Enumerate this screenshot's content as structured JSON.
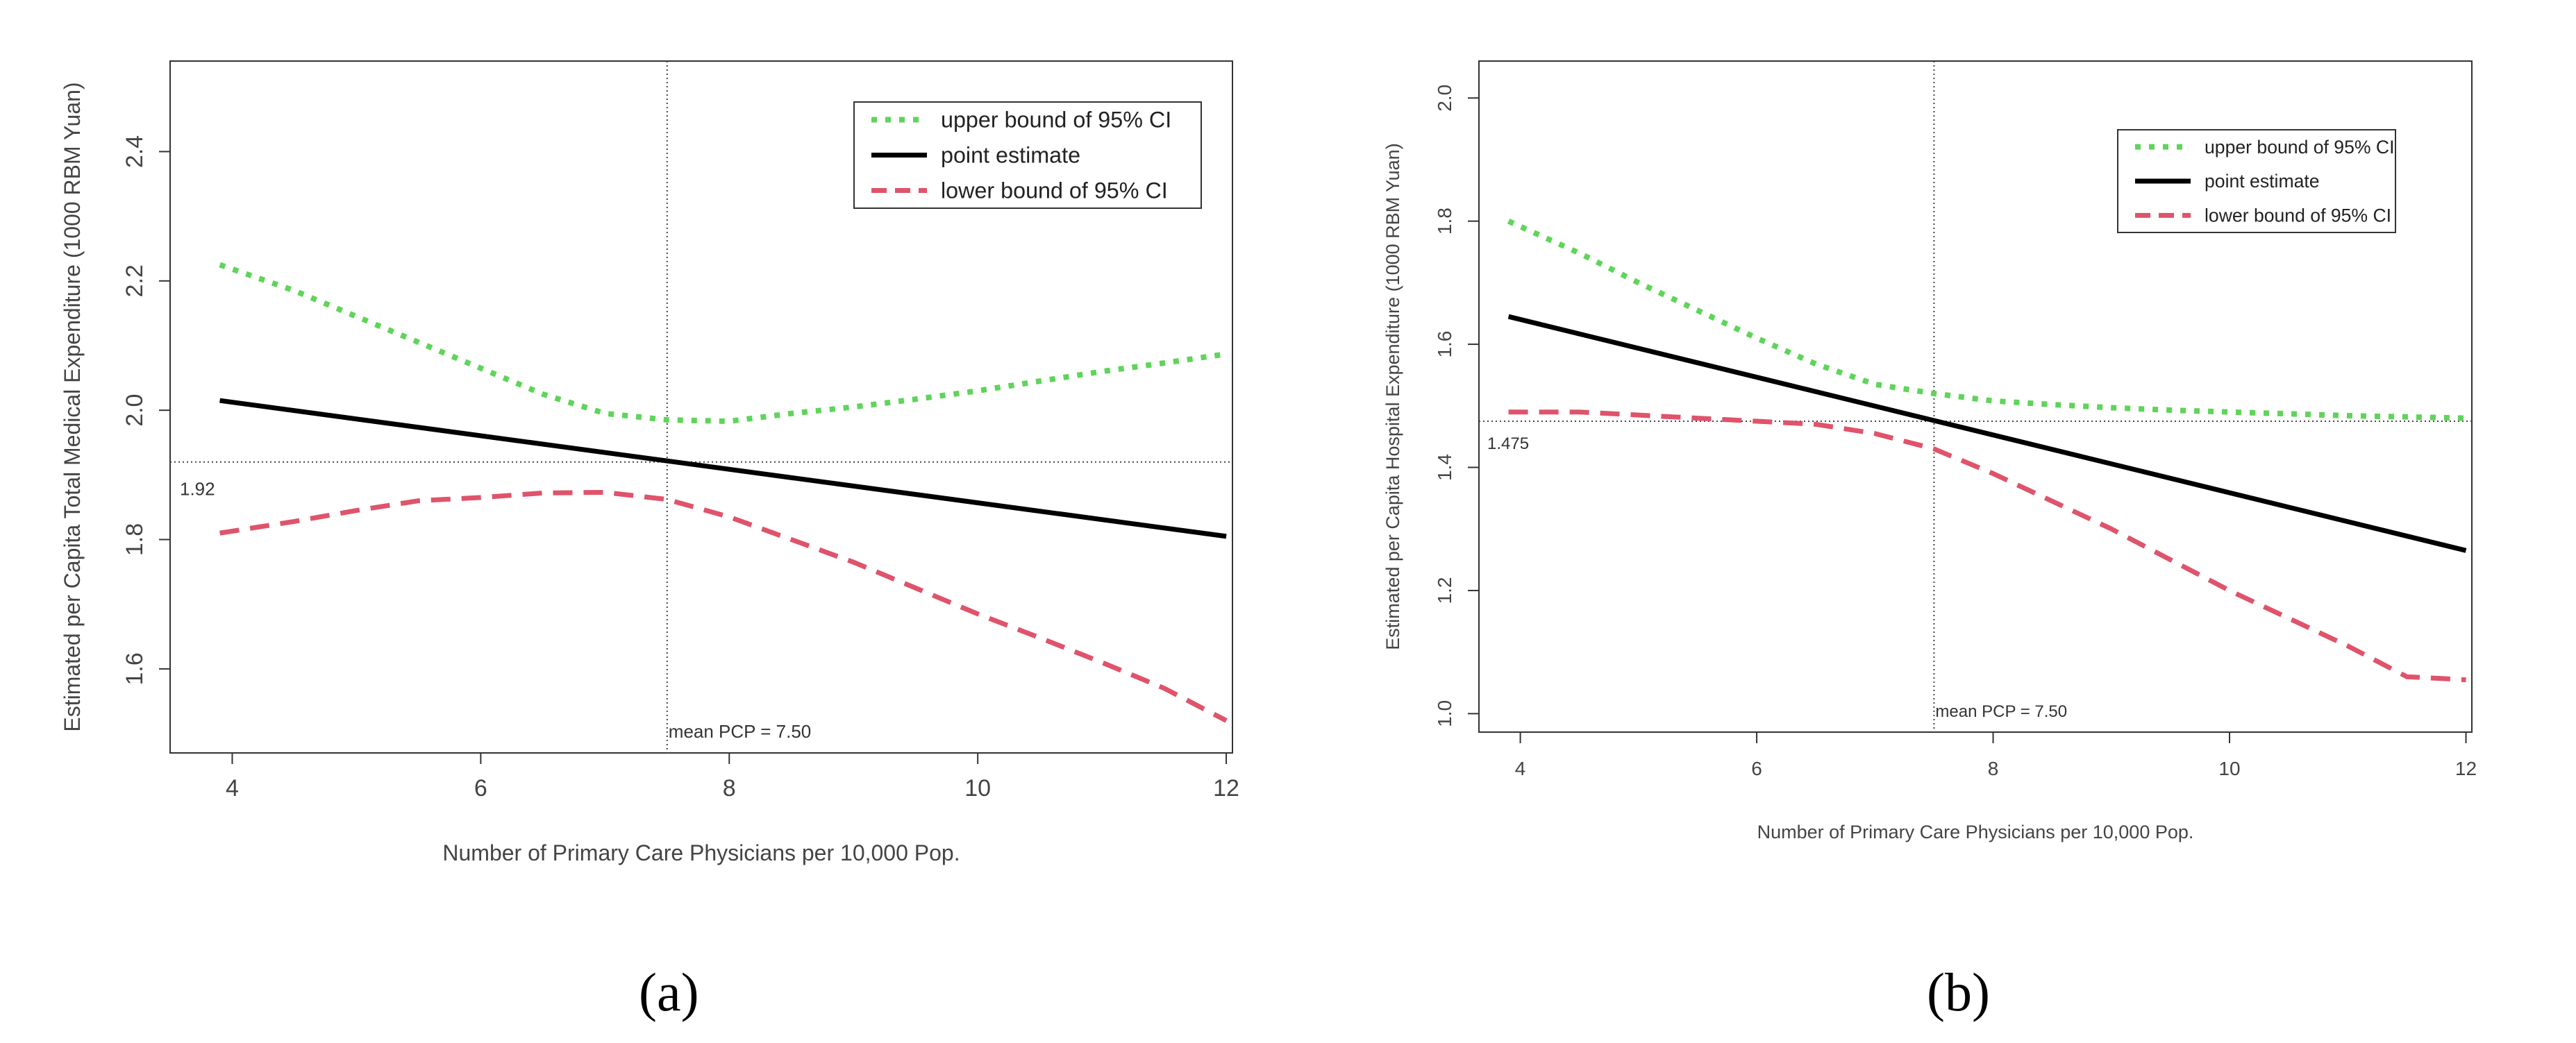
{
  "chart_data": [
    {
      "type": "line",
      "panel_label": "(a)",
      "xlabel": "Number of Primary Care Physicians per 10,000 Pop.",
      "ylabel": "Estimated per Capita Total Medical Expenditure (1000 RBM Yuan)",
      "xlim": [
        3.5,
        12.05
      ],
      "ylim": [
        1.47,
        2.54
      ],
      "xticks": [
        4,
        6,
        8,
        10,
        12
      ],
      "yticks": [
        1.6,
        1.8,
        2.0,
        2.2,
        2.4
      ],
      "x_tick_labels": [
        "4",
        "6",
        "8",
        "10",
        "12"
      ],
      "y_tick_labels": [
        "1.6",
        "1.8",
        "2.0",
        "2.2",
        "2.4"
      ],
      "reference_lines": {
        "vertical": {
          "x": 7.5,
          "label": "mean PCP = 7.50"
        },
        "horizontal": {
          "y": 1.92,
          "label": "1.92"
        }
      },
      "legend_position": "top-right",
      "series": [
        {
          "name": "upper bound of 95% CI",
          "color": "#5fd45a",
          "style": "dotted",
          "x": [
            3.9,
            4.5,
            5,
            5.5,
            6,
            6.5,
            7,
            7.5,
            8,
            8.5,
            9,
            9.5,
            10,
            10.5,
            11,
            11.5,
            12
          ],
          "y": [
            2.225,
            2.185,
            2.145,
            2.105,
            2.065,
            2.025,
            1.995,
            1.985,
            1.983,
            1.995,
            2.005,
            2.017,
            2.03,
            2.045,
            2.06,
            2.073,
            2.087
          ]
        },
        {
          "name": "point estimate",
          "color": "#000000",
          "style": "solid",
          "x": [
            3.9,
            12
          ],
          "y": [
            2.015,
            1.805
          ]
        },
        {
          "name": "lower bound of 95% CI",
          "color": "#df536b",
          "style": "dashed",
          "x": [
            3.9,
            4.5,
            5,
            5.5,
            6,
            6.5,
            7,
            7.5,
            8,
            8.5,
            9,
            9.5,
            10,
            10.5,
            11,
            11.5,
            12
          ],
          "y": [
            1.81,
            1.828,
            1.845,
            1.86,
            1.865,
            1.872,
            1.873,
            1.862,
            1.835,
            1.8,
            1.765,
            1.725,
            1.685,
            1.648,
            1.61,
            1.57,
            1.52
          ]
        }
      ]
    },
    {
      "type": "line",
      "panel_label": "(b)",
      "xlabel": "Number of Primary Care Physicians per 10,000 Pop.",
      "ylabel": "Estimated per Capita Hospital Expenditure (1000 RBM Yuan)",
      "xlim": [
        3.65,
        12.05
      ],
      "ylim": [
        0.97,
        2.06
      ],
      "xticks": [
        4,
        6,
        8,
        10,
        12
      ],
      "yticks": [
        1.0,
        1.2,
        1.4,
        1.6,
        1.8,
        2.0
      ],
      "x_tick_labels": [
        "4",
        "6",
        "8",
        "10",
        "12"
      ],
      "y_tick_labels": [
        "1.0",
        "1.2",
        "1.4",
        "1.6",
        "1.8",
        "2.0"
      ],
      "reference_lines": {
        "vertical": {
          "x": 7.5,
          "label": "mean PCP = 7.50"
        },
        "horizontal": {
          "y": 1.475,
          "label": "1.475"
        }
      },
      "legend_position": "top-right",
      "series": [
        {
          "name": "upper bound of 95% CI",
          "color": "#5fd45a",
          "style": "dotted",
          "x": [
            3.9,
            4.5,
            5,
            5.5,
            6,
            6.5,
            7,
            7.5,
            8,
            8.5,
            9,
            9.5,
            10,
            10.5,
            11,
            11.5,
            12
          ],
          "y": [
            1.8,
            1.748,
            1.7,
            1.655,
            1.61,
            1.568,
            1.535,
            1.52,
            1.508,
            1.502,
            1.497,
            1.493,
            1.49,
            1.487,
            1.484,
            1.482,
            1.48
          ]
        },
        {
          "name": "point estimate",
          "color": "#000000",
          "style": "solid",
          "x": [
            3.9,
            12
          ],
          "y": [
            1.645,
            1.265
          ]
        },
        {
          "name": "lower bound of 95% CI",
          "color": "#df536b",
          "style": "dashed",
          "x": [
            3.9,
            4.5,
            5,
            5.5,
            6,
            6.5,
            7,
            7.5,
            8,
            8.5,
            9,
            9.5,
            10,
            10.5,
            11,
            11.5,
            12
          ],
          "y": [
            1.49,
            1.49,
            1.485,
            1.48,
            1.475,
            1.47,
            1.455,
            1.43,
            1.39,
            1.345,
            1.3,
            1.25,
            1.2,
            1.155,
            1.11,
            1.06,
            1.055
          ]
        }
      ]
    }
  ]
}
